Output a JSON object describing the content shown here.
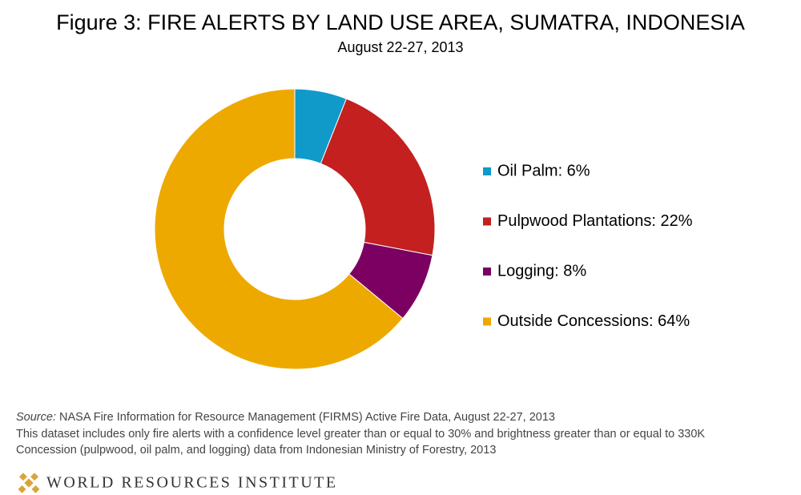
{
  "chart_data": {
    "type": "donut",
    "title": "Figure 3: FIRE ALERTS BY LAND USE AREA, SUMATRA, INDONESIA",
    "subtitle": "August 22-27, 2013",
    "categories": [
      "Oil Palm: 6%",
      "Pulpwood Plantations: 22%",
      "Logging: 8%",
      "Outside Concessions: 64%"
    ],
    "values": [
      6,
      22,
      8,
      64
    ],
    "colors": [
      "#0f9ac9",
      "#c3201f",
      "#7b0061",
      "#eea900"
    ],
    "legend": "right"
  },
  "footer": {
    "source_label": "Source:",
    "source_text": "NASA Fire Information for Resource Management (FIRMS) Active Fire Data, August 22-27, 2013",
    "notes": [
      "This dataset includes only fire alerts with a confidence level greater than or equal to 30% and brightness greater than or equal to 330K",
      "Concession  (pulpwood,  oil palm,  and logging) data from Indonesian Ministry of Forestry, 2013"
    ],
    "organization": "WORLD RESOURCES INSTITUTE"
  }
}
